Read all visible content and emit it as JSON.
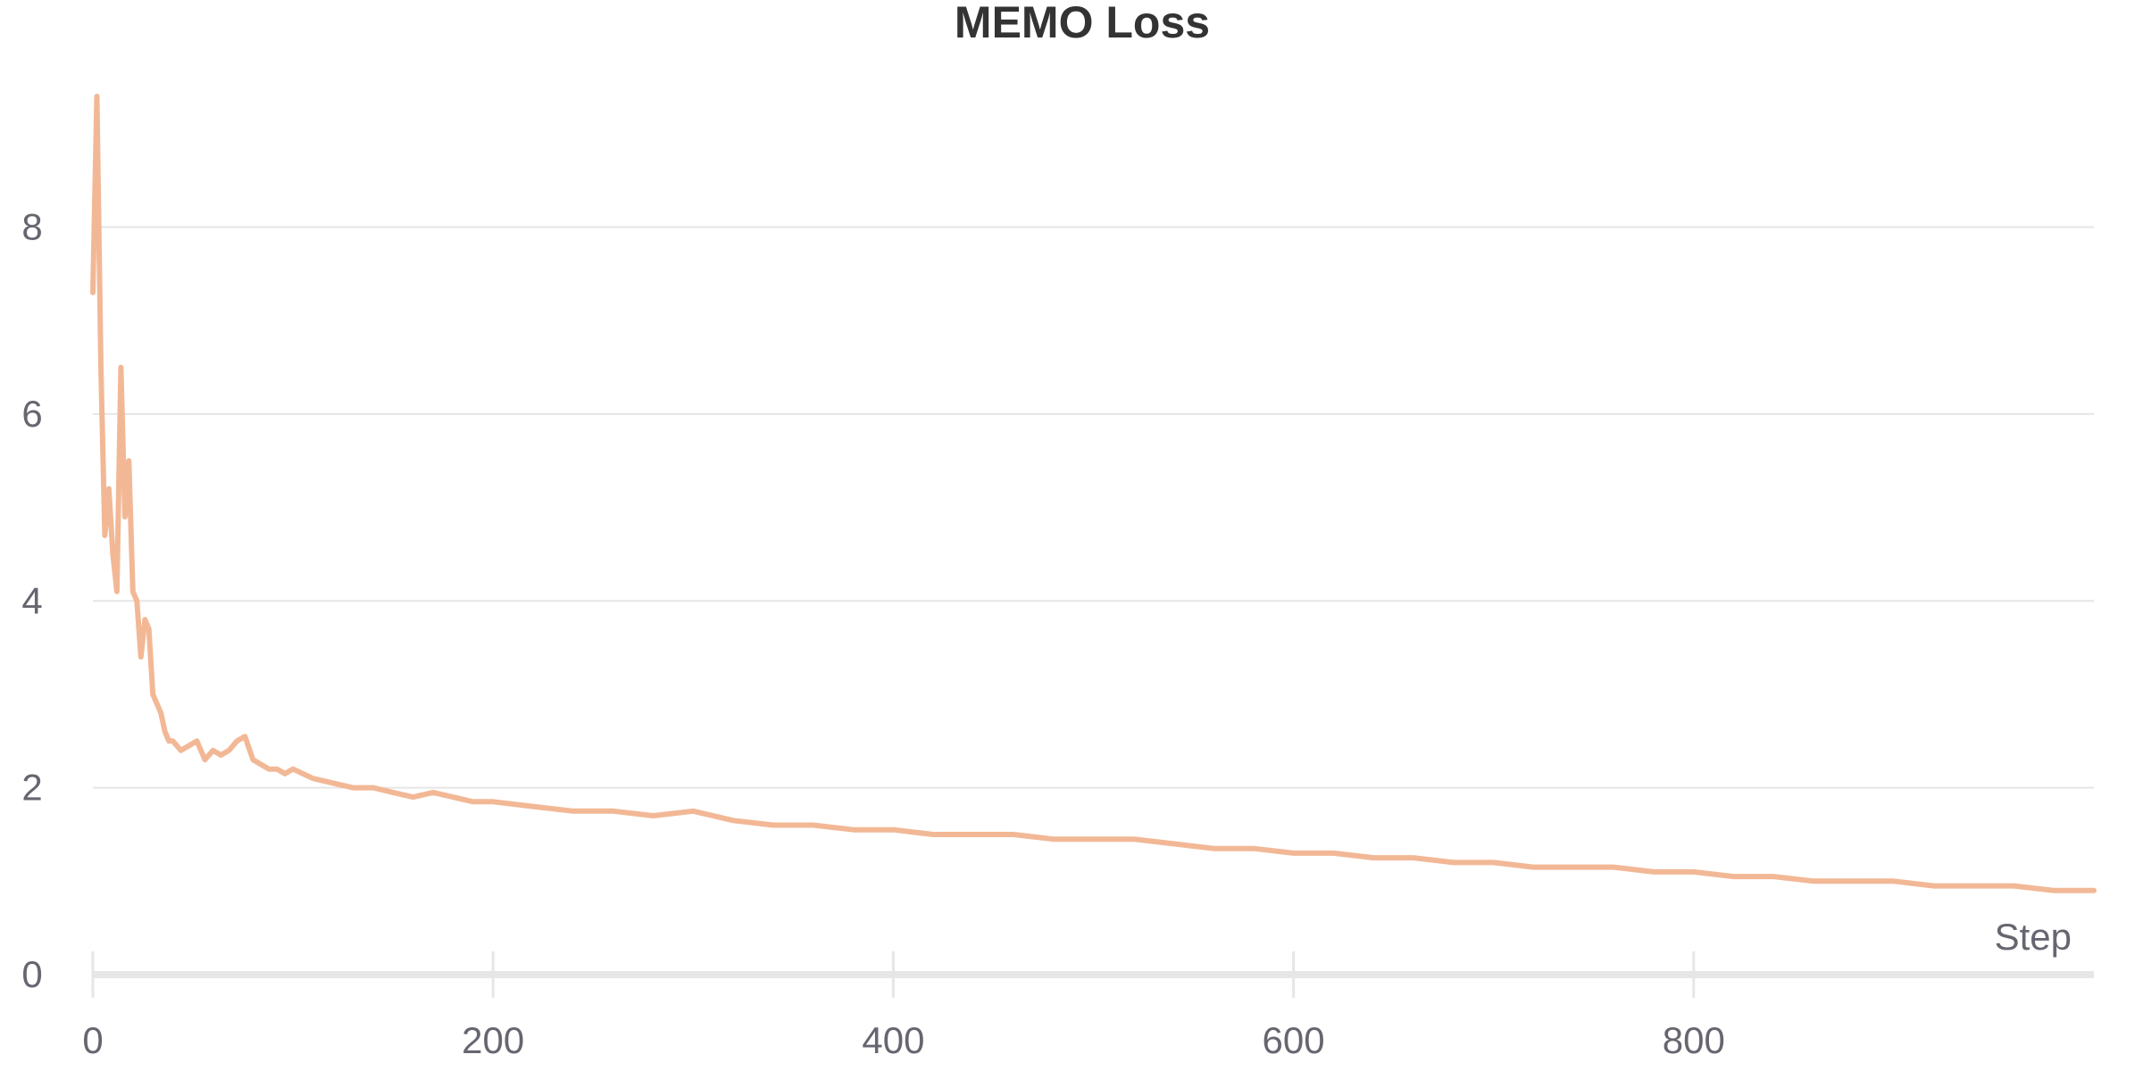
{
  "chart_data": {
    "type": "line",
    "title": "MEMO Loss",
    "xlabel": "Step",
    "ylabel": "",
    "xlim": [
      0,
      1000
    ],
    "ylim": [
      0,
      9.4
    ],
    "x_ticks": [
      0,
      200,
      400,
      600,
      800
    ],
    "y_ticks": [
      0,
      2,
      4,
      6,
      8
    ],
    "grid": "horizontal",
    "colors": {
      "line": "#f2b896",
      "grid": "#e6e6e6",
      "axis": "#e6e6e6",
      "text": "#666670",
      "title": "#333333"
    },
    "series": [
      {
        "x": [
          0,
          2,
          4,
          6,
          8,
          10,
          12,
          14,
          16,
          18,
          20,
          22,
          24,
          26,
          28,
          30,
          32,
          34,
          36,
          38,
          40,
          44,
          48,
          52,
          56,
          60,
          64,
          68,
          72,
          76,
          80,
          84,
          88,
          92,
          96,
          100,
          110,
          120,
          130,
          140,
          150,
          160,
          170,
          180,
          190,
          200,
          220,
          240,
          260,
          280,
          300,
          320,
          340,
          360,
          380,
          400,
          420,
          440,
          460,
          480,
          500,
          520,
          540,
          560,
          580,
          600,
          620,
          640,
          660,
          680,
          700,
          720,
          740,
          760,
          780,
          800,
          820,
          840,
          860,
          880,
          900,
          920,
          940,
          960,
          980,
          1000
        ],
        "y": [
          7.3,
          9.4,
          6.5,
          4.7,
          5.2,
          4.5,
          4.1,
          6.5,
          4.9,
          5.5,
          4.1,
          4.0,
          3.4,
          3.8,
          3.7,
          3.0,
          2.9,
          2.8,
          2.6,
          2.5,
          2.5,
          2.4,
          2.45,
          2.5,
          2.3,
          2.4,
          2.35,
          2.4,
          2.5,
          2.55,
          2.3,
          2.25,
          2.2,
          2.2,
          2.15,
          2.2,
          2.1,
          2.05,
          2.0,
          2.0,
          1.95,
          1.9,
          1.95,
          1.9,
          1.85,
          1.85,
          1.8,
          1.75,
          1.75,
          1.7,
          1.75,
          1.65,
          1.6,
          1.6,
          1.55,
          1.55,
          1.5,
          1.5,
          1.5,
          1.45,
          1.45,
          1.45,
          1.4,
          1.35,
          1.35,
          1.3,
          1.3,
          1.25,
          1.25,
          1.2,
          1.2,
          1.15,
          1.15,
          1.15,
          1.1,
          1.1,
          1.05,
          1.05,
          1.0,
          1.0,
          1.0,
          0.95,
          0.95,
          0.95,
          0.9,
          0.9
        ]
      }
    ]
  }
}
